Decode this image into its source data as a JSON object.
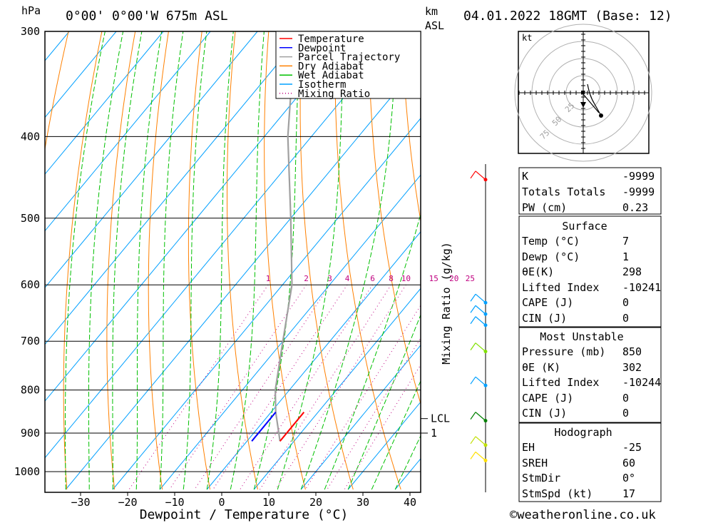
{
  "header": {
    "location": "0°00' 0°00'W 675m ASL",
    "datetime": "04.01.2022 18GMT (Base: 12)",
    "pressure_unit": "hPa",
    "height_unit_1": "km",
    "height_unit_2": "ASL"
  },
  "legend": [
    {
      "label": "Temperature",
      "color": "#ff0000",
      "style": "solid"
    },
    {
      "label": "Dewpoint",
      "color": "#0000ff",
      "style": "solid"
    },
    {
      "label": "Parcel Trajectory",
      "color": "#a0a0a0",
      "style": "solid"
    },
    {
      "label": "Dry Adiabat",
      "color": "#ff8000",
      "style": "solid"
    },
    {
      "label": "Wet Adiabat",
      "color": "#00c000",
      "style": "solid"
    },
    {
      "label": "Isotherm",
      "color": "#00a0ff",
      "style": "solid"
    },
    {
      "label": "Mixing Ratio",
      "color": "#c00080",
      "style": "dotted"
    }
  ],
  "chart_data": {
    "type": "skew-t",
    "xlabel": "Dewpoint / Temperature (°C)",
    "mixing_ratio_axis_label": "Mixing Ratio (g/kg)",
    "temperature_ticks": [
      -30,
      -20,
      -10,
      0,
      10,
      20,
      30,
      40
    ],
    "pressure_ticks": [
      300,
      400,
      500,
      600,
      700,
      800,
      900,
      1000
    ],
    "pressure_range": [
      300,
      1050
    ],
    "mixing_ratio_labels": [
      1,
      2,
      3,
      4,
      6,
      8,
      10,
      15,
      20,
      25
    ],
    "temperature_profile": [
      {
        "p": 850,
        "t": 7
      },
      {
        "p": 920,
        "t": 7
      }
    ],
    "dewpoint_profile": [
      {
        "p": 850,
        "td": 1
      },
      {
        "p": 920,
        "td": 1
      }
    ],
    "parcel_trajectory": [
      {
        "p": 920,
        "t": 7
      },
      {
        "p": 850,
        "t": 1
      },
      {
        "p": 800,
        "t": -3
      },
      {
        "p": 700,
        "t": -10
      },
      {
        "p": 600,
        "t": -18
      },
      {
        "p": 500,
        "t": -30
      },
      {
        "p": 400,
        "t": -45
      },
      {
        "p": 300,
        "t": -62
      }
    ],
    "height_markers": [
      {
        "label": "LCL",
        "p": 865
      },
      {
        "label": "1",
        "p": 900
      }
    ],
    "wind_profile": [
      {
        "p": 450,
        "color": "#ff0000"
      },
      {
        "p": 630,
        "color": "#00a0ff"
      },
      {
        "p": 650,
        "color": "#00a0ff"
      },
      {
        "p": 670,
        "color": "#00a0ff"
      },
      {
        "p": 720,
        "color": "#80e000"
      },
      {
        "p": 790,
        "color": "#00a0ff"
      },
      {
        "p": 870,
        "color": "#008000"
      },
      {
        "p": 930,
        "color": "#c0e000"
      },
      {
        "p": 970,
        "color": "#ffe000"
      }
    ]
  },
  "hodograph": {
    "unit": "kt",
    "ring_labels": [
      "25",
      "50",
      "75"
    ]
  },
  "indices": {
    "k_label": "K",
    "k_value": "-9999",
    "tt_label": "Totals Totals",
    "tt_value": "-9999",
    "pw_label": "PW (cm)",
    "pw_value": "0.23",
    "surface_title": "Surface",
    "temp_label": "Temp (°C)",
    "temp_value": "7",
    "dewp_label": "Dewp (°C)",
    "dewp_value": "1",
    "theta_label": "θE(K)",
    "theta_value": "298",
    "li_label": "Lifted Index",
    "li_value": "-10241",
    "cape_label": "CAPE (J)",
    "cape_value": "0",
    "cin_label": "CIN (J)",
    "cin_value": "0",
    "mu_title": "Most Unstable",
    "mu_pressure_label": "Pressure (mb)",
    "mu_pressure_value": "850",
    "mu_theta_label": "θE (K)",
    "mu_theta_value": "302",
    "mu_li_label": "Lifted Index",
    "mu_li_value": "-10244",
    "mu_cape_label": "CAPE (J)",
    "mu_cape_value": "0",
    "mu_cin_label": "CIN (J)",
    "mu_cin_value": "0",
    "hodo_title": "Hodograph",
    "eh_label": "EH",
    "eh_value": "-25",
    "sreh_label": "SREH",
    "sreh_value": "60",
    "stmdir_label": "StmDir",
    "stmdir_value": "0°",
    "stmspd_label": "StmSpd (kt)",
    "stmspd_value": "17"
  },
  "footer": {
    "copyright": "©weatheronline.co.uk"
  }
}
